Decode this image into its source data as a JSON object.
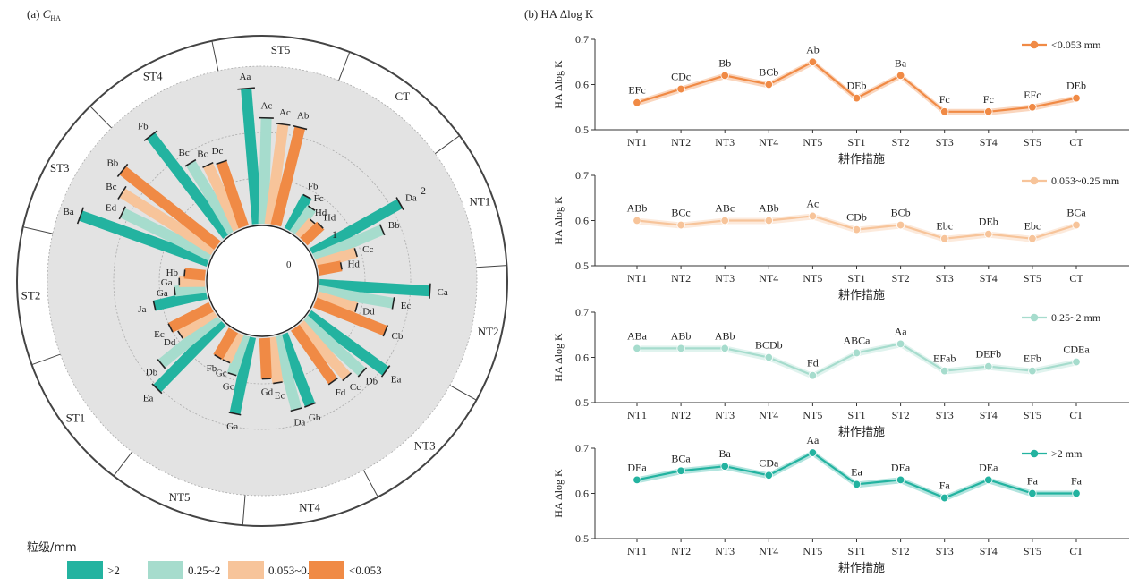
{
  "panel_a": {
    "title_prefix": "(a) ",
    "title_var": "C",
    "title_sub": "HA",
    "legend_title": "粒级/mm",
    "ring_labels": [
      "0",
      "1",
      "2"
    ]
  },
  "panel_b": {
    "title": "(b) HA Δlog K",
    "ylabel": "HA Δlog K",
    "xlabel": "耕作措施"
  },
  "chart_data": [
    {
      "type": "bar",
      "subtype": "radial",
      "title": "(a) C HA",
      "categories": [
        "NT1",
        "NT2",
        "NT3",
        "NT4",
        "NT5",
        "ST1",
        "ST2",
        "ST3",
        "ST4",
        "ST5",
        "CT"
      ],
      "radial_axis": {
        "ticks": [
          "0",
          "1",
          "2"
        ]
      },
      "series": [
        {
          "name": ">2",
          "color": "#23b3a0",
          "values": [
            2.05,
            2.25,
            1.95,
            1.55,
            1.6,
            1.9,
            1.1,
            2.75,
            2.55,
            2.75,
            0.8
          ],
          "labels": [
            "Da",
            "Ca",
            "Ea",
            "Gb",
            "Ga",
            "Ea",
            "Ja",
            "Ba",
            "Fb",
            "Aa",
            "Fb"
          ]
        },
        {
          "name": "0.25~2",
          "color": "#a6dccd",
          "values": [
            1.5,
            1.55,
            1.6,
            1.55,
            0.85,
            1.5,
            0.65,
            2.0,
            1.65,
            2.15,
            0.65
          ],
          "labels": [
            "Bb",
            "Ec",
            "Db",
            "Da",
            "Gc",
            "Db",
            "Ga",
            "Ed",
            "Bc",
            "Ac",
            "Fc"
          ]
        },
        {
          "name": "0.053~0.25",
          "color": "#f7c49a",
          "values": [
            0.85,
            0.85,
            1.45,
            0.95,
            0.65,
            0.85,
            0.55,
            2.2,
            1.45,
            2.05,
            0.45
          ],
          "labels": [
            "Cc",
            "Dd",
            "Cc",
            "Ec",
            "Gc",
            "Dd",
            "Ga",
            "Bc",
            "Bc",
            "Ac",
            "Hd"
          ]
        },
        {
          "name": "<0.053",
          "color": "#f08a45",
          "values": [
            0.5,
            1.55,
            1.35,
            0.85,
            0.65,
            0.95,
            0.45,
            2.45,
            1.4,
            2.05,
            0.5
          ],
          "labels": [
            "Hd",
            "Cb",
            "Fd",
            "Gd",
            "Fb",
            "Ec",
            "Hb",
            "Bb",
            "Dc",
            "Ab",
            "Hd"
          ]
        }
      ]
    },
    {
      "type": "line",
      "xlabel": "耕作措施",
      "ylabel": "HA Δlog K",
      "x": [
        "NT1",
        "NT2",
        "NT3",
        "NT4",
        "NT5",
        "ST1",
        "ST2",
        "ST3",
        "ST4",
        "ST5",
        "CT"
      ],
      "ylim": [
        0.5,
        0.7
      ],
      "yticks": [
        "0.5",
        "0.6",
        "0.7"
      ],
      "series": [
        {
          "name": "<0.053 mm",
          "color": "#f08a45",
          "values": [
            0.56,
            0.59,
            0.62,
            0.6,
            0.65,
            0.57,
            0.62,
            0.54,
            0.54,
            0.55,
            0.57
          ],
          "labels": [
            "EFc",
            "CDc",
            "Bb",
            "BCb",
            "Ab",
            "DEb",
            "Ba",
            "Fc",
            "Fc",
            "EFc",
            "DEb"
          ]
        }
      ]
    },
    {
      "type": "line",
      "xlabel": "耕作措施",
      "ylabel": "HA Δlog K",
      "x": [
        "NT1",
        "NT2",
        "NT3",
        "NT4",
        "NT5",
        "ST1",
        "ST2",
        "ST3",
        "ST4",
        "ST5",
        "CT"
      ],
      "ylim": [
        0.5,
        0.7
      ],
      "yticks": [
        "0.5",
        "0.6",
        "0.7"
      ],
      "series": [
        {
          "name": "0.053~0.25 mm",
          "color": "#f7c49a",
          "values": [
            0.6,
            0.59,
            0.6,
            0.6,
            0.61,
            0.58,
            0.59,
            0.56,
            0.57,
            0.56,
            0.59
          ],
          "labels": [
            "ABb",
            "BCc",
            "ABc",
            "ABb",
            "Ac",
            "CDb",
            "BCb",
            "Ebc",
            "DEb",
            "Ebc",
            "BCa"
          ]
        }
      ]
    },
    {
      "type": "line",
      "xlabel": "耕作措施",
      "ylabel": "HA Δlog K",
      "x": [
        "NT1",
        "NT2",
        "NT3",
        "NT4",
        "NT5",
        "ST1",
        "ST2",
        "ST3",
        "ST4",
        "ST5",
        "CT"
      ],
      "ylim": [
        0.5,
        0.7
      ],
      "yticks": [
        "0.5",
        "0.6",
        "0.7"
      ],
      "series": [
        {
          "name": "0.25~2 mm",
          "color": "#a6dccd",
          "values": [
            0.62,
            0.62,
            0.62,
            0.6,
            0.56,
            0.61,
            0.63,
            0.57,
            0.58,
            0.57,
            0.59
          ],
          "labels": [
            "ABa",
            "ABb",
            "ABb",
            "BCDb",
            "Fd",
            "ABCa",
            "Aa",
            "EFab",
            "DEFb",
            "EFb",
            "CDEa"
          ]
        }
      ]
    },
    {
      "type": "line",
      "xlabel": "耕作措施",
      "ylabel": "HA Δlog K",
      "x": [
        "NT1",
        "NT2",
        "NT3",
        "NT4",
        "NT5",
        "ST1",
        "ST2",
        "ST3",
        "ST4",
        "ST5",
        "CT"
      ],
      "ylim": [
        0.5,
        0.7
      ],
      "yticks": [
        "0.5",
        "0.6",
        "0.7"
      ],
      "series": [
        {
          "name": ">2 mm",
          "color": "#23b3a0",
          "values": [
            0.63,
            0.65,
            0.66,
            0.64,
            0.69,
            0.62,
            0.63,
            0.59,
            0.63,
            0.6,
            0.6
          ],
          "labels": [
            "DEa",
            "BCa",
            "Ba",
            "CDa",
            "Aa",
            "Ea",
            "DEa",
            "Fa",
            "DEa",
            "Fa",
            "Fa"
          ]
        }
      ]
    }
  ]
}
